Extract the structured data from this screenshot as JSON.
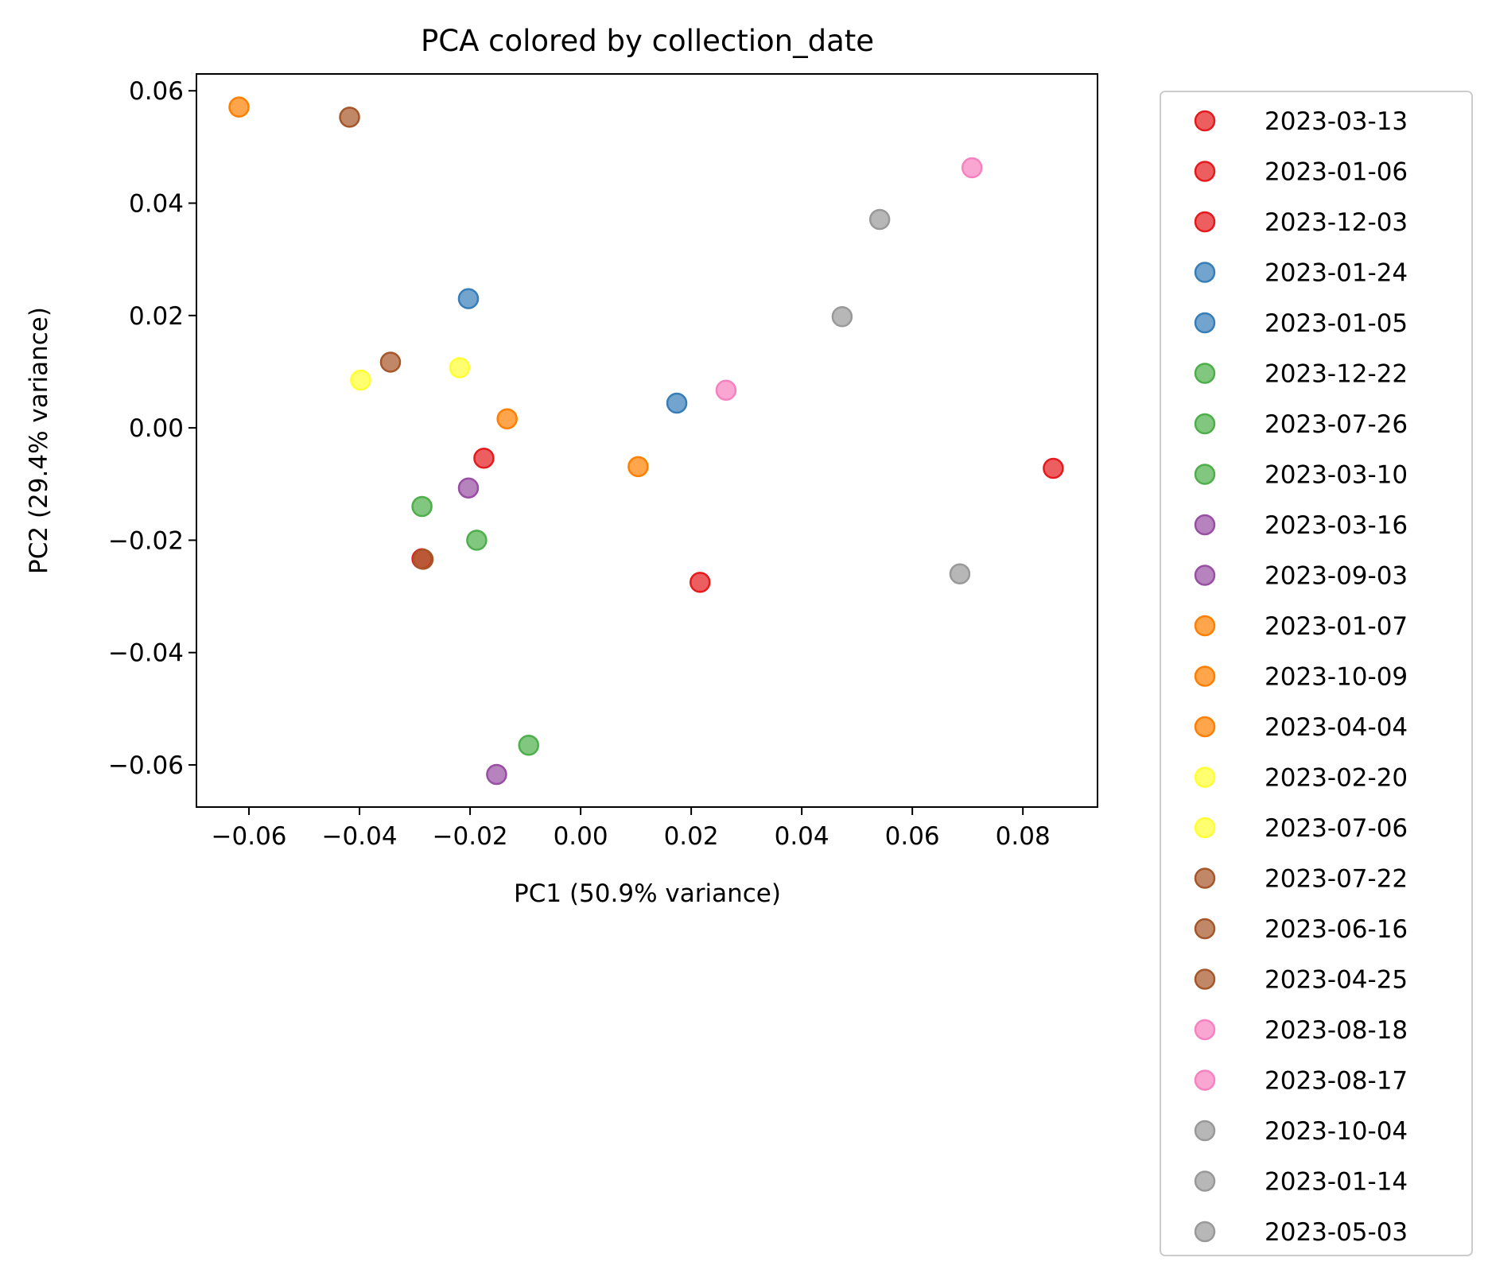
{
  "chart_data": {
    "type": "scatter",
    "title": "PCA colored by collection_date",
    "xlabel": "PC1 (50.9% variance)",
    "ylabel": "PC2 (29.4% variance)",
    "xlim": [
      -0.0695,
      0.0935
    ],
    "ylim": [
      -0.0675,
      0.063
    ],
    "xticks": [
      -0.06,
      -0.04,
      -0.02,
      0.0,
      0.02,
      0.04,
      0.06,
      0.08
    ],
    "xtick_labels": [
      "−0.06",
      "−0.04",
      "−0.02",
      "0.00",
      "0.02",
      "0.04",
      "0.06",
      "0.08"
    ],
    "yticks": [
      -0.06,
      -0.04,
      -0.02,
      0.0,
      0.02,
      0.04,
      0.06
    ],
    "ytick_labels": [
      "−0.06",
      "−0.04",
      "−0.02",
      "0.00",
      "0.02",
      "0.04",
      "0.06"
    ],
    "grid": false,
    "legend_placement": "outside-right",
    "colors": {
      "red": "#e41a1c",
      "blue": "#377eb8",
      "green": "#4daf4a",
      "purple": "#984ea3",
      "orange": "#ff7f00",
      "yellow": "#ffff33",
      "brown": "#a65628",
      "pink": "#f781bf",
      "grey": "#999999"
    },
    "series": [
      {
        "name": "2023-03-13",
        "color": "#e41a1c",
        "points": [
          [
            -0.0287,
            -0.0233
          ]
        ]
      },
      {
        "name": "2023-01-06",
        "color": "#e41a1c",
        "points": [
          [
            0.0216,
            -0.0275
          ]
        ]
      },
      {
        "name": "2023-12-03",
        "color": "#e41a1c",
        "points": [
          [
            -0.0175,
            -0.0054
          ],
          [
            0.0855,
            -0.0072
          ]
        ]
      },
      {
        "name": "2023-01-24",
        "color": "#377eb8",
        "points": [
          [
            -0.0203,
            0.023
          ]
        ]
      },
      {
        "name": "2023-01-05",
        "color": "#377eb8",
        "points": [
          [
            0.0174,
            0.0044
          ]
        ]
      },
      {
        "name": "2023-12-22",
        "color": "#4daf4a",
        "points": [
          [
            -0.0287,
            -0.014
          ]
        ]
      },
      {
        "name": "2023-07-26",
        "color": "#4daf4a",
        "points": [
          [
            -0.0188,
            -0.02
          ]
        ]
      },
      {
        "name": "2023-03-10",
        "color": "#4daf4a",
        "points": [
          [
            -0.0094,
            -0.0565
          ]
        ]
      },
      {
        "name": "2023-03-16",
        "color": "#984ea3",
        "points": [
          [
            -0.0203,
            -0.0107
          ]
        ]
      },
      {
        "name": "2023-09-03",
        "color": "#984ea3",
        "points": [
          [
            -0.0152,
            -0.0617
          ]
        ]
      },
      {
        "name": "2023-01-07",
        "color": "#ff7f00",
        "points": [
          [
            -0.0618,
            0.0571
          ]
        ]
      },
      {
        "name": "2023-10-09",
        "color": "#ff7f00",
        "points": [
          [
            -0.0133,
            0.0016
          ]
        ]
      },
      {
        "name": "2023-04-04",
        "color": "#ff7f00",
        "points": [
          [
            0.0104,
            -0.0069
          ]
        ]
      },
      {
        "name": "2023-02-20",
        "color": "#ffff33",
        "points": [
          [
            -0.0398,
            0.0085
          ]
        ]
      },
      {
        "name": "2023-07-06",
        "color": "#ffff33",
        "points": [
          [
            -0.0219,
            0.0107
          ]
        ]
      },
      {
        "name": "2023-07-22",
        "color": "#a65628",
        "points": [
          [
            -0.0418,
            0.0553
          ]
        ]
      },
      {
        "name": "2023-06-16",
        "color": "#a65628",
        "points": [
          [
            -0.0344,
            0.0117
          ]
        ]
      },
      {
        "name": "2023-04-25",
        "color": "#a65628",
        "points": [
          [
            -0.0285,
            -0.0234
          ]
        ]
      },
      {
        "name": "2023-08-18",
        "color": "#f781bf",
        "points": [
          [
            0.0708,
            0.0463
          ]
        ]
      },
      {
        "name": "2023-08-17",
        "color": "#f781bf",
        "points": [
          [
            0.0263,
            0.0067
          ]
        ]
      },
      {
        "name": "2023-10-04",
        "color": "#999999",
        "points": [
          [
            0.0541,
            0.0371
          ]
        ]
      },
      {
        "name": "2023-01-14",
        "color": "#999999",
        "points": [
          [
            0.0473,
            0.0198
          ]
        ]
      },
      {
        "name": "2023-05-03",
        "color": "#999999",
        "points": [
          [
            0.0686,
            -0.026
          ]
        ]
      }
    ]
  }
}
